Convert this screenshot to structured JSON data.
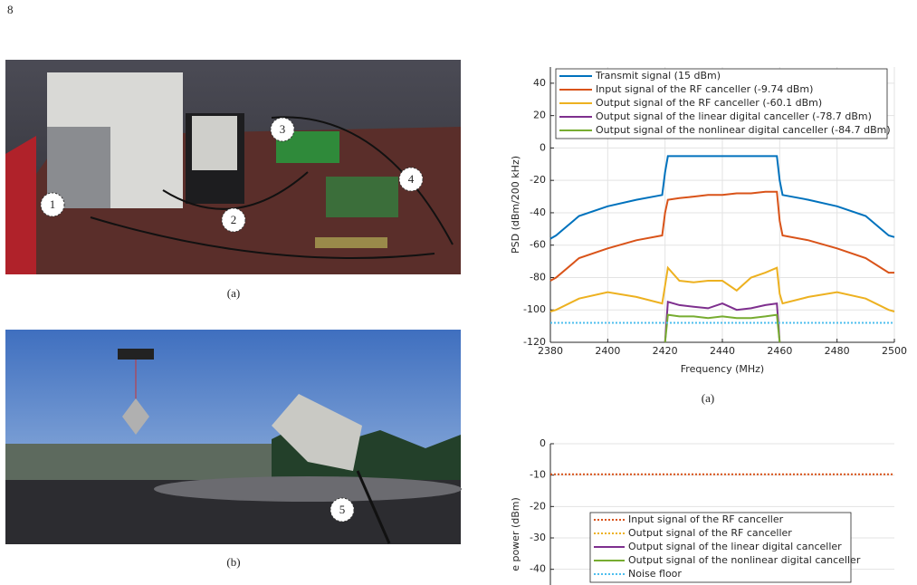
{
  "page_number": "8",
  "photos": [
    {
      "labels": [
        "1",
        "2",
        "3",
        "4"
      ],
      "caption": "(a)"
    },
    {
      "labels": [
        "5"
      ],
      "caption": "(b)"
    }
  ],
  "chart_data": [
    {
      "type": "line",
      "caption": "(a)",
      "xlabel": "Frequency (MHz)",
      "ylabel": "PSD (dBm/200 kHz)",
      "x": [
        2380,
        2382,
        2390,
        2400,
        2410,
        2419,
        2420,
        2421,
        2425,
        2430,
        2435,
        2440,
        2445,
        2450,
        2455,
        2459,
        2460,
        2461,
        2470,
        2480,
        2490,
        2498,
        2500
      ],
      "xlim": [
        2380,
        2500
      ],
      "xticks": [
        2380,
        2400,
        2420,
        2440,
        2460,
        2480,
        2500
      ],
      "ylim": [
        -120,
        50
      ],
      "yticks": [
        -120,
        -100,
        -80,
        -60,
        -40,
        -20,
        0,
        20,
        40
      ],
      "grid": true,
      "legend": "top",
      "series": [
        {
          "name": "Transmit signal (15 dBm)",
          "color": "#0072bd",
          "style": "solid",
          "values": [
            -56,
            -54,
            -42,
            -36,
            -32,
            -29,
            -15,
            -5,
            -5,
            -5,
            -5,
            -5,
            -5,
            -5,
            -5,
            -5,
            -20,
            -29,
            -32,
            -36,
            -42,
            -54,
            -55
          ]
        },
        {
          "name": "Input signal of the RF canceller (-9.74 dBm)",
          "color": "#d95319",
          "style": "solid",
          "values": [
            -82,
            -80,
            -68,
            -62,
            -57,
            -54,
            -40,
            -32,
            -31,
            -30,
            -29,
            -29,
            -28,
            -28,
            -27,
            -27,
            -45,
            -54,
            -57,
            -62,
            -68,
            -77,
            -77
          ]
        },
        {
          "name": "Output signal of the RF canceller (-60.1 dBm)",
          "color": "#edb120",
          "style": "solid",
          "values": [
            -101,
            -100,
            -93,
            -89,
            -92,
            -96,
            -85,
            -74,
            -82,
            -83,
            -82,
            -82,
            -88,
            -80,
            -77,
            -74,
            -90,
            -96,
            -92,
            -89,
            -93,
            -100,
            -101
          ]
        },
        {
          "name": "Output signal of the linear digital canceller (-78.7 dBm)",
          "color": "#7e2f8e",
          "style": "solid",
          "values": [
            null,
            null,
            null,
            null,
            null,
            null,
            -120,
            -95,
            -97,
            -98,
            -99,
            -96,
            -100,
            -99,
            -97,
            -96,
            -120,
            null,
            null,
            null,
            null,
            null,
            null
          ]
        },
        {
          "name": "Output signal of the nonlinear digital canceller (-84.7 dBm)",
          "color": "#77ac30",
          "style": "solid",
          "values": [
            null,
            null,
            null,
            null,
            null,
            null,
            -120,
            -103,
            -104,
            -104,
            -105,
            -104,
            -105,
            -105,
            -104,
            -103,
            -120,
            null,
            null,
            null,
            null,
            null,
            null
          ]
        },
        {
          "color": "#4dbeee",
          "style": "dotted",
          "values": [
            -108,
            -108,
            -108,
            -108,
            -108,
            -108,
            -108,
            -108,
            -108,
            -108,
            -108,
            -108,
            -108,
            -108,
            -108,
            -108,
            -108,
            -108,
            -108,
            -108,
            -108,
            -108,
            -108
          ]
        }
      ]
    },
    {
      "type": "line",
      "ylabel": "e power (dBm)",
      "ylim": [
        -45,
        0
      ],
      "yticks": [
        -40,
        -30,
        -20,
        -10,
        0
      ],
      "grid": true,
      "legend": "bottom",
      "series": [
        {
          "name": "Input signal of the RF canceller",
          "color": "#d95319",
          "style": "dotted",
          "values": [
            -9.74
          ]
        },
        {
          "name": "Output signal of the RF canceller",
          "color": "#edb120",
          "style": "dotted"
        },
        {
          "name": "Output signal of the linear digital canceller",
          "color": "#7e2f8e",
          "style": "solid"
        },
        {
          "name": "Output signal of the nonlinear digital canceller",
          "color": "#77ac30",
          "style": "solid"
        },
        {
          "name": "Noise floor",
          "color": "#4dbeee",
          "style": "dotted"
        }
      ]
    }
  ]
}
